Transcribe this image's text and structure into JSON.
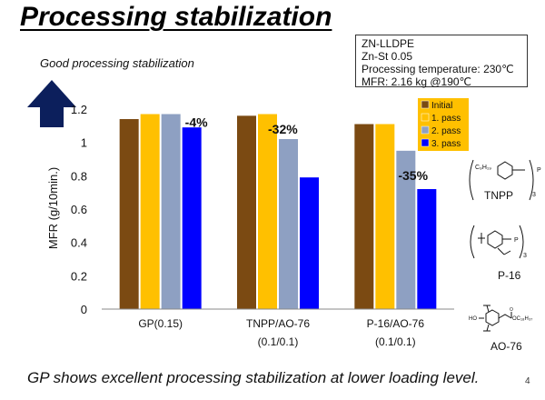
{
  "slide": {
    "title": "Processing stabilization",
    "subtitle": "Good processing stabilization",
    "footer": "GP shows excellent processing stabilization at lower loading level.",
    "page_number": "4"
  },
  "conditions": [
    "ZN-LLDPE",
    "Zn-St 0.05",
    "Processing temperature: 230℃",
    "MFR: 2.16 kg @190℃"
  ],
  "structures": {
    "tnpp_label": "TNPP",
    "tnpp_chain": "C₉H₁₉",
    "tnpp_atom": "P",
    "tnpp_sub": "3",
    "p16_label": "P-16",
    "p16_atom": "P",
    "p16_sub": "3",
    "ao76_label": "AO-76",
    "ao76_ho": "HO",
    "ao76_ester": "OC₁₈H₃₇",
    "ao76_o": "O"
  },
  "colors": {
    "initial": "#7B4A12",
    "pass1": "#FFC000",
    "pass2": "#8EA0C2",
    "pass3": "#0000FF",
    "arrow": "#0C1F5C",
    "legend_bg": "#FFC000"
  },
  "chart_data": {
    "type": "bar",
    "ylabel": "MFR (g/10min.)",
    "ylim": [
      0,
      1.2
    ],
    "yticks": [
      "0",
      "0.2",
      "0.4",
      "0.6",
      "0.8",
      "1",
      "1.2"
    ],
    "categories": [
      "GP(0.15)",
      "TNPP/AO-76",
      "P-16/AO-76"
    ],
    "category_sublabels": [
      "",
      "(0.1/0.1)",
      "(0.1/0.1)"
    ],
    "series": [
      {
        "name": "Initial",
        "values": [
          1.14,
          1.16,
          1.11
        ]
      },
      {
        "name": "1. pass",
        "values": [
          1.17,
          1.17,
          1.11
        ]
      },
      {
        "name": "2. pass",
        "values": [
          1.17,
          1.02,
          0.95
        ]
      },
      {
        "name": "3. pass",
        "values": [
          1.09,
          0.79,
          0.72
        ]
      }
    ],
    "annotations": [
      "-4%",
      "-32%",
      "-35%"
    ],
    "legend_position": "top-right",
    "grid": false
  }
}
